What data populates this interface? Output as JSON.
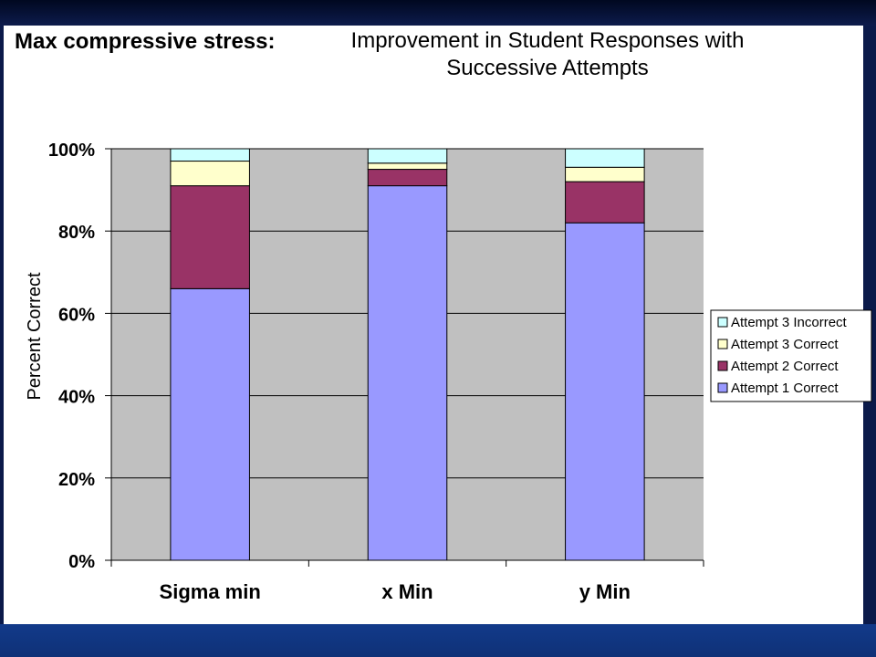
{
  "slide": {
    "heading": "Max compressive stress:"
  },
  "chart_data": {
    "type": "bar",
    "stacked": true,
    "title": "Improvement in Student Responses with Successive Attempts",
    "title_lines": [
      "Improvement in Student Responses with",
      "Successive Attempts"
    ],
    "ylabel": "Percent Correct",
    "xlabel": "",
    "ylim": [
      0,
      100
    ],
    "y_ticks": [
      0,
      20,
      40,
      60,
      80,
      100
    ],
    "y_tick_labels": [
      "0%",
      "20%",
      "40%",
      "60%",
      "80%",
      "100%"
    ],
    "categories": [
      "Sigma min",
      "x Min",
      "y Min"
    ],
    "series": [
      {
        "name": "Attempt 1 Correct",
        "values": [
          66,
          91,
          82
        ],
        "color": "#9999ff"
      },
      {
        "name": "Attempt 2 Correct",
        "values": [
          25,
          4,
          10
        ],
        "color": "#993366"
      },
      {
        "name": "Attempt 3 Correct",
        "values": [
          6,
          1.5,
          3.5
        ],
        "color": "#ffffcc"
      },
      {
        "name": "Attempt 3 Incorrect",
        "values": [
          3,
          3.5,
          4.5
        ],
        "color": "#ccffff"
      }
    ],
    "legend_order": [
      "Attempt 3 Incorrect",
      "Attempt 3 Correct",
      "Attempt 2 Correct",
      "Attempt 1 Correct"
    ],
    "legend_position": "right",
    "grid": true,
    "plot_background": "#c0c0c0"
  }
}
